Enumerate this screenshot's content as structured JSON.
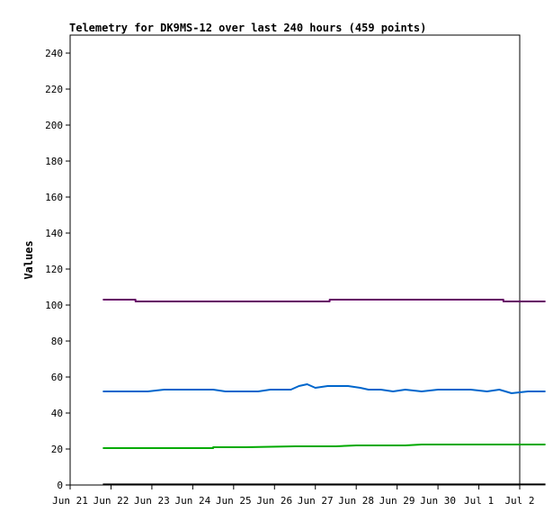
{
  "chart_data": {
    "type": "line",
    "title": "Telemetry for DK9MS-12 over last 240 hours (459 points)",
    "xlabel": "",
    "ylabel": "Values",
    "ylim": [
      0,
      250
    ],
    "xlim": [
      0,
      11
    ],
    "yticks": [
      0,
      20,
      40,
      60,
      80,
      100,
      120,
      140,
      160,
      180,
      200,
      220,
      240
    ],
    "xticks": [
      {
        "label": "Jun 21",
        "x": 0
      },
      {
        "label": "Jun 22",
        "x": 1
      },
      {
        "label": "Jun 23",
        "x": 2
      },
      {
        "label": "Jun 24",
        "x": 3
      },
      {
        "label": "Jun 25",
        "x": 4
      },
      {
        "label": "Jun 26",
        "x": 5
      },
      {
        "label": "Jun 27",
        "x": 6
      },
      {
        "label": "Jun 28",
        "x": 7
      },
      {
        "label": "Jun 29",
        "x": 8
      },
      {
        "label": "Jun 30",
        "x": 9
      },
      {
        "label": "Jul 1",
        "x": 10
      },
      {
        "label": "Jul 2",
        "x": 11
      }
    ],
    "grid": false,
    "legend": "none",
    "series": [
      {
        "color": "#660066",
        "x": [
          0.8,
          1.6,
          1.6,
          6.35,
          6.35,
          10.6,
          10.6,
          11.63
        ],
        "y": [
          103,
          103,
          102,
          102,
          103,
          103,
          102,
          102
        ]
      },
      {
        "color": "#0066cc",
        "x": [
          0.8,
          1.0,
          1.5,
          1.9,
          2.3,
          2.6,
          3.0,
          3.2,
          3.5,
          3.8,
          4.2,
          4.6,
          4.9,
          5.2,
          5.4,
          5.6,
          5.8,
          6.0,
          6.3,
          6.5,
          6.8,
          7.1,
          7.3,
          7.6,
          7.9,
          8.2,
          8.6,
          9.0,
          9.4,
          9.8,
          10.2,
          10.5,
          10.8,
          11.2,
          11.63
        ],
        "y": [
          52,
          52,
          52,
          52,
          53,
          53,
          53,
          53,
          53,
          52,
          52,
          52,
          53,
          53,
          53,
          55,
          56,
          54,
          55,
          55,
          55,
          54,
          53,
          53,
          52,
          53,
          52,
          53,
          53,
          53,
          52,
          53,
          51,
          52,
          52
        ]
      },
      {
        "color": "#00aa00",
        "x": [
          0.8,
          2.0,
          3.5,
          3.5,
          4.3,
          4.3,
          5.5,
          6.5,
          7.0,
          7.5,
          7.8,
          8.2,
          8.6,
          9.0,
          9.5,
          10.0,
          11.63
        ],
        "y": [
          20.5,
          20.5,
          20.5,
          21,
          21,
          21,
          21.5,
          21.5,
          22,
          22,
          22,
          22,
          22.5,
          22.5,
          22.5,
          22.5,
          22.5
        ]
      },
      {
        "color": "#000000",
        "x": [
          0.8,
          11.63
        ],
        "y": [
          0.3,
          0.3
        ]
      }
    ]
  }
}
